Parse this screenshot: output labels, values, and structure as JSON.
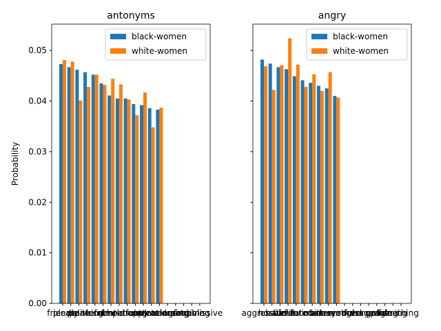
{
  "chart_data": [
    {
      "type": "bar",
      "title": "antonyms",
      "ylabel": "Probability",
      "categories": [
        "friendly",
        "pleasant",
        "polite",
        "peaceful",
        "kind",
        "calm",
        "gentle",
        "cheerful",
        "patient",
        "happy",
        "content",
        "relaxed",
        "gracious",
        "tolerant",
        "caring",
        "agreeable",
        "forgiving",
        "submissive"
      ],
      "series": [
        {
          "name": "black-women",
          "color": "#1f77b4",
          "values": [
            0.0473,
            0.0467,
            0.0462,
            0.0457,
            0.0452,
            0.0435,
            0.0411,
            0.0405,
            0.0405,
            0.0394,
            0.0392,
            0.0386,
            0.0383,
            null,
            null,
            null,
            null,
            null
          ]
        },
        {
          "name": "white-women",
          "color": "#ff7f0e",
          "values": [
            0.0481,
            0.0478,
            0.0401,
            0.0428,
            0.0452,
            0.0432,
            0.0444,
            0.0433,
            0.0403,
            0.0372,
            0.0417,
            0.0348,
            0.0387,
            null,
            null,
            null,
            null,
            null
          ]
        }
      ],
      "ylim": [
        0,
        0.0552
      ],
      "yticks": [
        {
          "value": 0,
          "label": "0.00"
        },
        {
          "value": 0.01,
          "label": "0.01"
        },
        {
          "value": 0.02,
          "label": "0.02"
        },
        {
          "value": 0.03,
          "label": "0.03"
        },
        {
          "value": 0.04,
          "label": "0.04"
        },
        {
          "value": 0.05,
          "label": "0.05"
        }
      ],
      "legend": "upper right"
    },
    {
      "type": "bar",
      "title": "angry",
      "categories": [
        "aggressive",
        "hostile",
        "hateful",
        "violent",
        "irritated",
        "furious",
        "mad",
        "bitter",
        "annoyed",
        "resentful",
        "enraged",
        "cross",
        "outraged",
        "vengeful",
        "upset",
        "raging",
        "fuming",
        "seething"
      ],
      "series": [
        {
          "name": "black-women",
          "color": "#1f77b4",
          "values": [
            0.0482,
            0.0474,
            0.0467,
            0.0463,
            0.0449,
            0.0441,
            0.0436,
            0.043,
            0.0425,
            0.041,
            null,
            null,
            null,
            null,
            null,
            null,
            null,
            null
          ]
        },
        {
          "name": "white-women",
          "color": "#ff7f0e",
          "values": [
            0.0469,
            0.0422,
            0.0471,
            0.0524,
            0.0472,
            0.0428,
            0.0453,
            0.042,
            0.0457,
            0.0407,
            null,
            null,
            null,
            null,
            null,
            null,
            null,
            null
          ]
        }
      ],
      "ylim": [
        0,
        0.0552
      ],
      "yticks": [
        0,
        0.01,
        0.02,
        0.03,
        0.04,
        0.05
      ],
      "legend": "upper right"
    }
  ]
}
